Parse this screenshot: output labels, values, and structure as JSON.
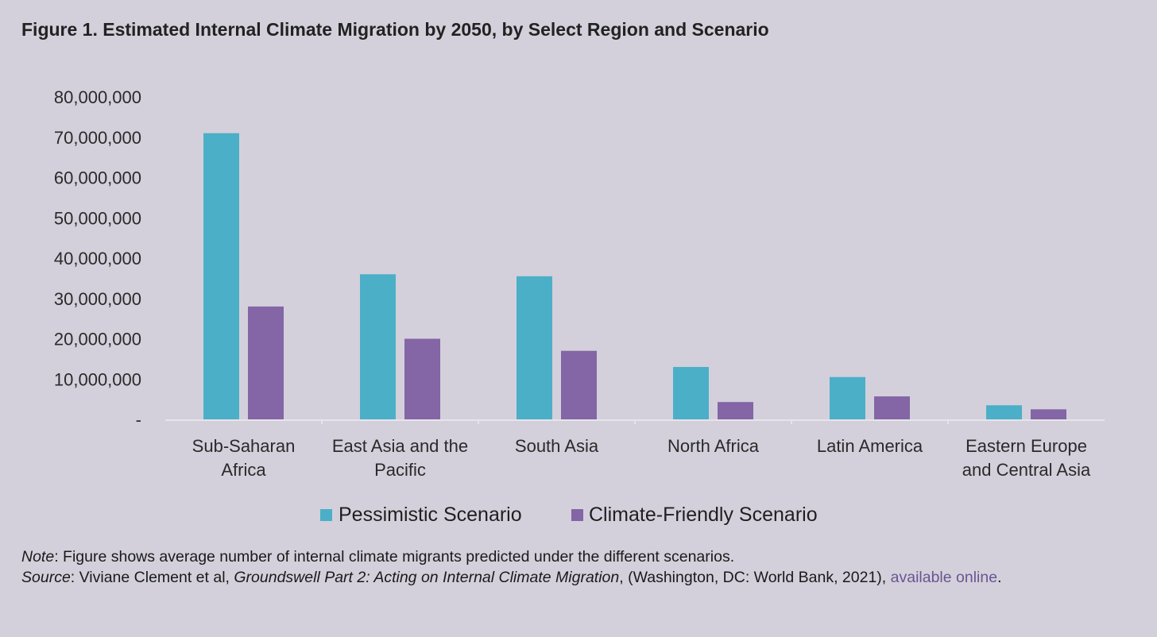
{
  "chart_data": {
    "type": "bar",
    "title": "Figure 1. Estimated Internal Climate Migration by 2050, by Select Region and Scenario",
    "categories": [
      [
        "Sub-Saharan",
        "Africa"
      ],
      [
        "East Asia and the",
        "Pacific"
      ],
      [
        "South Asia"
      ],
      [
        "North Africa"
      ],
      [
        "Latin America"
      ],
      [
        "Eastern Europe",
        "and Central Asia"
      ]
    ],
    "series": [
      {
        "name": "Pessimistic Scenario",
        "color": "#4bafc8",
        "values": [
          71000000,
          36000000,
          35500000,
          13000000,
          10500000,
          3500000
        ]
      },
      {
        "name": "Climate-Friendly Scenario",
        "color": "#8465a5",
        "values": [
          28000000,
          20000000,
          17000000,
          4300000,
          5700000,
          2500000
        ]
      }
    ],
    "ylim": [
      0,
      80000000
    ],
    "yticks": [
      0,
      10000000,
      20000000,
      30000000,
      40000000,
      50000000,
      60000000,
      70000000,
      80000000
    ],
    "ytick_labels": [
      "-",
      "10,000,000",
      "20,000,000",
      "30,000,000",
      "40,000,000",
      "50,000,000",
      "60,000,000",
      "70,000,000",
      "80,000,000"
    ],
    "xlabel": "",
    "ylabel": "",
    "grid": false,
    "legend": "bottom-center"
  },
  "footnote": {
    "note_label": "Note",
    "note_text": ": Figure shows average number of internal climate migrants predicted under the different scenarios.",
    "source_label": "Source",
    "source_pre": ": Viviane Clement et al, ",
    "source_title": "Groundswell Part 2: Acting on Internal Climate Migration",
    "source_post": ", (Washington, DC: World Bank, 2021), ",
    "source_link": "available online",
    "source_end": "."
  }
}
